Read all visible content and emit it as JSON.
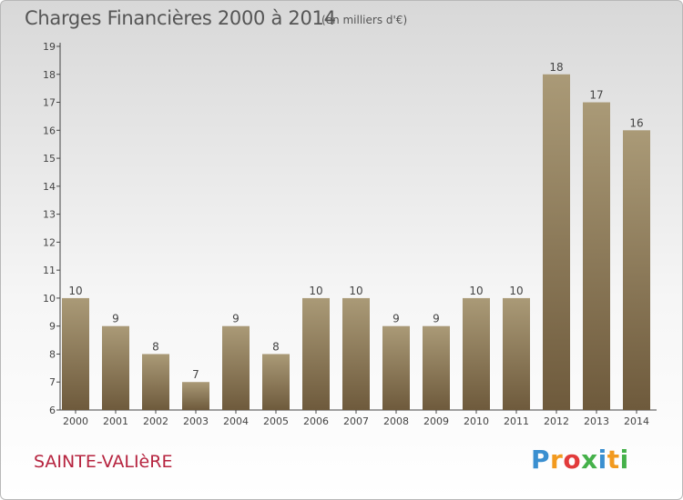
{
  "header": {
    "title": "Charges Financières 2000 à 2014",
    "unit": "(en milliers d'€)"
  },
  "footer": {
    "commune": "SAINTE-VALIèRE",
    "logo_letters": [
      "P",
      "r",
      "o",
      "x",
      "i",
      "t",
      "i"
    ],
    "logo_colors": [
      "#3a8fd0",
      "#f29a1f",
      "#e23b3b",
      "#45b14a",
      "#3a8fd0",
      "#f29a1f",
      "#45b14a"
    ]
  },
  "chart_data": {
    "type": "bar",
    "title": "Charges Financières 2000 à 2014",
    "subtitle": "(en milliers d'€)",
    "categories": [
      "2000",
      "2001",
      "2002",
      "2003",
      "2004",
      "2005",
      "2006",
      "2007",
      "2008",
      "2009",
      "2010",
      "2011",
      "2012",
      "2013",
      "2014"
    ],
    "values": [
      10,
      9,
      8,
      7,
      9,
      8,
      10,
      10,
      9,
      9,
      10,
      10,
      18,
      17,
      16
    ],
    "ylim": [
      6,
      19
    ],
    "yticks": [
      6,
      7,
      8,
      9,
      10,
      11,
      12,
      13,
      14,
      15,
      16,
      17,
      18,
      19
    ],
    "grid": false,
    "legend": "none",
    "bar_color_top": "#aa9a77",
    "bar_color_bottom": "#6e5a3c"
  }
}
